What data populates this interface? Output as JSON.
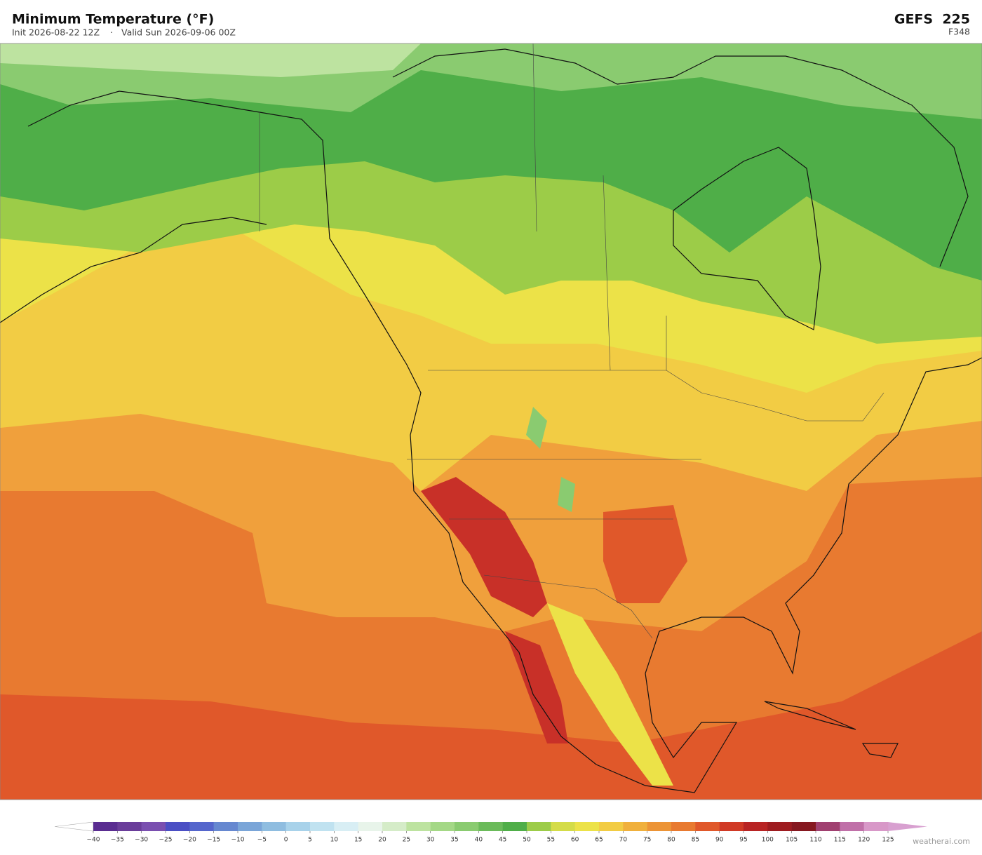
{
  "header": {
    "title": "Minimum Temperature  (°F)",
    "init": "Init 2026-08-22 12Z",
    "separator": "·",
    "valid": "Valid Sun 2026-09-06 00Z",
    "model": "GEFS  225",
    "forecast_hour": "F348"
  },
  "colorbar": {
    "ticks": [
      {
        "value": -40,
        "label": "−40"
      },
      {
        "value": -35,
        "label": "−35"
      },
      {
        "value": -30,
        "label": "−30"
      },
      {
        "value": -25,
        "label": "−25"
      },
      {
        "value": -20,
        "label": "−20"
      },
      {
        "value": -15,
        "label": "−15"
      },
      {
        "value": -10,
        "label": "−10"
      },
      {
        "value": -5,
        "label": "−5"
      },
      0,
      5,
      10,
      15,
      20,
      25,
      30,
      35,
      40,
      45,
      50,
      55,
      60,
      65,
      70,
      75,
      80,
      85,
      90,
      95,
      100,
      105,
      110,
      115,
      120,
      125
    ],
    "colors": [
      "#5a2d91",
      "#6a3d9a",
      "#7a4fb0",
      "#4b4fc4",
      "#5566cc",
      "#6688d0",
      "#7aa5d8",
      "#8fbde0",
      "#a8d2ea",
      "#c0e2f0",
      "#d8eef4",
      "#e8f4ea",
      "#d5ecc8",
      "#bde3a0",
      "#a4d886",
      "#8acb70",
      "#6bbb5a",
      "#4fae48",
      "#9ccc48",
      "#d4dc48",
      "#ece248",
      "#f2cc44",
      "#f0b03c",
      "#ec9436",
      "#e87a30",
      "#e0582a",
      "#d03a26",
      "#b82424",
      "#9e1c20",
      "#861820",
      "#a04070",
      "#c070a8",
      "#d898c8"
    ],
    "under_color": "#ffffff",
    "over_color": "#d8a0d0"
  },
  "footer": {
    "watermark": "weatherai.com"
  }
}
